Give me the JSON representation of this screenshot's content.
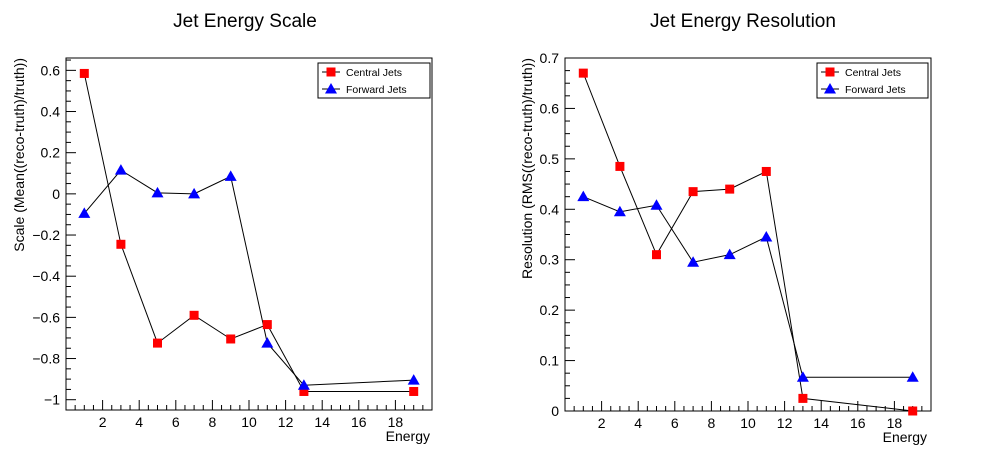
{
  "chart_data": [
    {
      "type": "line",
      "title": "Jet Energy Scale",
      "xlabel": "Energy",
      "ylabel": "Scale (Mean((reco-truth)/truth))",
      "xlim": [
        0,
        20
      ],
      "ylim": [
        -1.05,
        0.66
      ],
      "xticks": [
        2,
        4,
        6,
        8,
        10,
        12,
        14,
        16,
        18
      ],
      "yticks": [
        0.6,
        0.4,
        0.2,
        0,
        -0.2,
        -0.4,
        -0.6,
        -0.8,
        -1
      ],
      "ytick_labels": [
        "0.6",
        "0.4",
        "0.2",
        "0",
        "−0.2",
        "−0.4",
        "−0.6",
        "−0.8",
        "−1"
      ],
      "legend_position": "top-right",
      "grid": false,
      "series": [
        {
          "name": "Central Jets",
          "marker": "square",
          "color": "#ff0000",
          "x": [
            1,
            3,
            5,
            7,
            9,
            11,
            13,
            19
          ],
          "y": [
            0.585,
            -0.245,
            -0.725,
            -0.59,
            -0.705,
            -0.635,
            -0.96,
            -0.96
          ]
        },
        {
          "name": "Forward Jets",
          "marker": "triangle",
          "color": "#0000ff",
          "x": [
            1,
            3,
            5,
            7,
            9,
            11,
            13,
            19
          ],
          "y": [
            -0.095,
            0.115,
            0.005,
            0.0,
            0.085,
            -0.725,
            -0.93,
            -0.905
          ]
        }
      ]
    },
    {
      "type": "line",
      "title": "Jet Energy Resolution",
      "xlabel": "Energy",
      "ylabel": "Resolution (RMS((reco-truth)/truth))",
      "xlim": [
        0,
        20
      ],
      "ylim": [
        0,
        0.7
      ],
      "xticks": [
        2,
        4,
        6,
        8,
        10,
        12,
        14,
        16,
        18
      ],
      "yticks": [
        0,
        0.1,
        0.2,
        0.3,
        0.4,
        0.5,
        0.6,
        0.7
      ],
      "ytick_labels": [
        "0",
        "0.1",
        "0.2",
        "0.3",
        "0.4",
        "0.5",
        "0.6",
        "0.7"
      ],
      "legend_position": "top-right",
      "grid": false,
      "series": [
        {
          "name": "Central Jets",
          "marker": "square",
          "color": "#ff0000",
          "x": [
            1,
            3,
            5,
            7,
            9,
            11,
            13,
            19
          ],
          "y": [
            0.67,
            0.485,
            0.31,
            0.435,
            0.44,
            0.475,
            0.025,
            0.0
          ]
        },
        {
          "name": "Forward Jets",
          "marker": "triangle",
          "color": "#0000ff",
          "x": [
            1,
            3,
            5,
            7,
            9,
            11,
            13,
            19
          ],
          "y": [
            0.425,
            0.395,
            0.408,
            0.295,
            0.31,
            0.345,
            0.067,
            0.067
          ]
        }
      ]
    }
  ]
}
